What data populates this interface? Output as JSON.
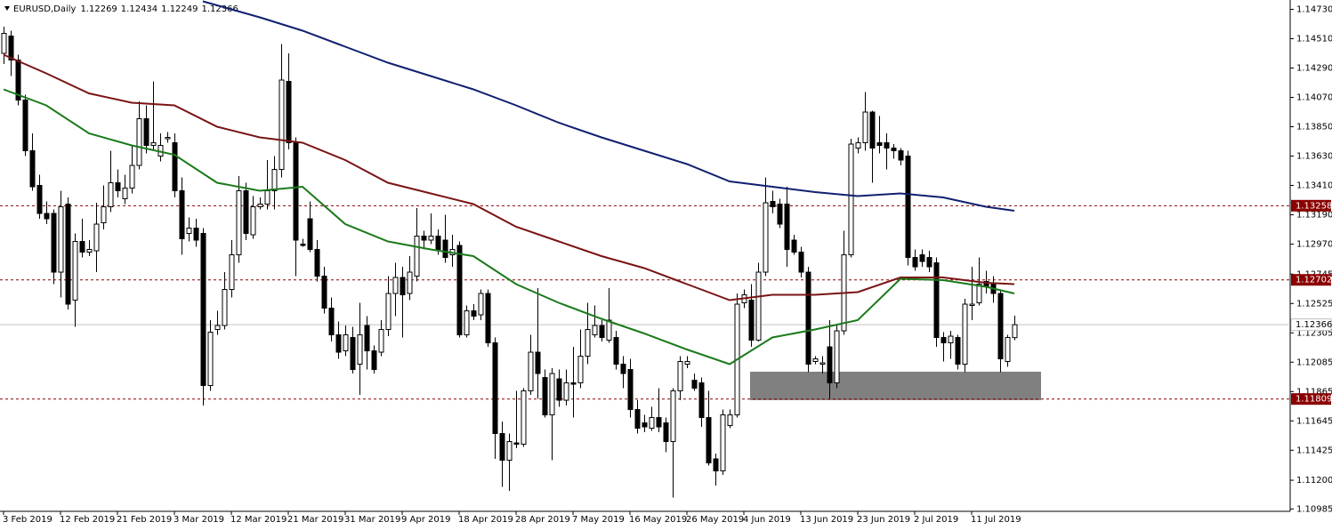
{
  "chart_data": {
    "type": "candlestick",
    "title": "EURUSD,Daily",
    "categories": [
      "3 Feb 2019",
      null,
      null,
      null,
      null,
      null,
      null,
      null,
      "12 Feb 2019",
      null,
      null,
      null,
      null,
      null,
      null,
      null,
      "21 Feb 2019",
      null,
      null,
      null,
      null,
      null,
      null,
      null,
      "3 Mar 2019",
      null,
      null,
      null,
      null,
      null,
      null,
      null,
      "12 Mar 2019",
      null,
      null,
      null,
      null,
      null,
      null,
      null,
      "21 Mar 2019",
      null,
      null,
      null,
      null,
      null,
      null,
      null,
      "31 Mar 2019",
      null,
      null,
      null,
      null,
      null,
      null,
      null,
      "9 Apr 2019",
      null,
      null,
      null,
      null,
      null,
      null,
      null,
      "18 Apr 2019",
      null,
      null,
      null,
      null,
      null,
      null,
      null,
      "28 Apr 2019",
      null,
      null,
      null,
      null,
      null,
      null,
      null,
      "7 May 2019",
      null,
      null,
      null,
      null,
      null,
      null,
      null,
      "16 May 2019",
      null,
      null,
      null,
      null,
      null,
      null,
      null,
      "26 May 2019",
      null,
      null,
      null,
      null,
      null,
      null,
      null,
      "4 Jun 2019",
      null,
      null,
      null,
      null,
      null,
      null,
      null,
      "13 Jun 2019",
      null,
      null,
      null,
      null,
      null,
      null,
      null,
      "23 Jun 2019",
      null,
      null,
      null,
      null,
      null,
      null,
      null,
      "2 Jul 2019",
      null,
      null,
      null,
      null,
      null,
      null,
      null,
      "11 Jul 2019",
      null,
      null,
      null,
      null,
      null,
      null
    ],
    "open": [
      1.144,
      1.1453,
      1.1435,
      1.1405,
      1.1367,
      1.1341,
      1.132,
      1.132,
      1.1276,
      1.1327,
      1.1255,
      1.1299,
      1.1291,
      1.1292,
      1.1313,
      1.1325,
      1.1343,
      1.1331,
      1.1339,
      1.1356,
      1.1391,
      1.1371,
      1.1363,
      1.1376,
      1.1373,
      1.1337,
      1.1305,
      1.1309,
      1.1305,
      1.1191,
      1.1233,
      1.1236,
      1.1263,
      1.1289,
      1.1337,
      1.1304,
      1.1325,
      1.1327,
      1.1337,
      1.1353,
      1.1419,
      1.1373,
      1.1297,
      1.1316,
      1.1293,
      1.1273,
      1.1249,
      1.1229,
      1.1217,
      1.1227,
      1.1207,
      1.1236,
      1.1217,
      1.1216,
      1.1233,
      1.126,
      1.1272,
      1.126,
      1.1273,
      1.1303,
      1.13,
      1.1303,
      1.13,
      1.1289,
      1.1296,
      1.1229,
      1.1247,
      1.1244,
      1.126,
      1.1223,
      1.1155,
      1.1135,
      1.1148,
      1.1147,
      1.1187,
      1.1216,
      1.1197,
      1.1169,
      1.1196,
      1.118,
      1.1193,
      1.1193,
      1.1213,
      1.1229,
      1.1236,
      1.1225,
      1.1227,
      1.1207,
      1.1203,
      1.1173,
      1.1163,
      1.1159,
      1.1167,
      1.1163,
      1.1149,
      1.1187,
      1.1207,
      1.1195,
      1.1193,
      1.1167,
      1.1136,
      1.1127,
      1.1161,
      1.1169,
      1.1253,
      1.1255,
      1.1225,
      1.1276,
      1.1329,
      1.1327,
      1.1327,
      1.13,
      1.1291,
      1.1276,
      1.1209,
      1.1207,
      1.122,
      1.1193,
      1.1232,
      1.1289,
      1.1369,
      1.1373,
      1.1396,
      1.1373,
      1.1373,
      1.1369,
      1.1367,
      1.1363,
      1.1287,
      1.1289,
      1.1287,
      1.1283,
      1.1227,
      1.1223,
      1.1227,
      1.1207,
      1.1251,
      1.1253,
      1.1269,
      1.1267,
      1.126,
      1.1209,
      1.12269
    ],
    "high": [
      1.146,
      1.1457,
      1.1439,
      1.1409,
      1.138,
      1.1349,
      1.1329,
      1.1323,
      1.1337,
      1.1332,
      1.1305,
      1.1316,
      1.13,
      1.1328,
      1.1341,
      1.1367,
      1.1353,
      1.1349,
      1.1371,
      1.1404,
      1.1401,
      1.1419,
      1.138,
      1.1381,
      1.138,
      1.1347,
      1.1317,
      1.1316,
      1.1309,
      1.124,
      1.1247,
      1.1276,
      1.13,
      1.1348,
      1.1343,
      1.1333,
      1.1332,
      1.136,
      1.1363,
      1.1447,
      1.144,
      1.1377,
      1.1301,
      1.1329,
      1.13,
      1.128,
      1.1257,
      1.1239,
      1.1236,
      1.1235,
      1.1253,
      1.1243,
      1.1221,
      1.124,
      1.1273,
      1.1283,
      1.128,
      1.1288,
      1.1324,
      1.1307,
      1.132,
      1.1308,
      1.1319,
      1.1304,
      1.1299,
      1.1251,
      1.1252,
      1.1263,
      1.1263,
      1.1227,
      1.1164,
      1.1155,
      1.1187,
      1.1189,
      1.1229,
      1.1264,
      1.1203,
      1.1204,
      1.1203,
      1.1203,
      1.122,
      1.1233,
      1.1253,
      1.1251,
      1.124,
      1.1264,
      1.1232,
      1.1213,
      1.1211,
      1.118,
      1.1169,
      1.1175,
      1.1189,
      1.1167,
      1.1189,
      1.1213,
      1.1213,
      1.12,
      1.1197,
      1.1187,
      1.114,
      1.1173,
      1.1173,
      1.126,
      1.1263,
      1.1267,
      1.1283,
      1.1347,
      1.1337,
      1.1331,
      1.134,
      1.1304,
      1.1295,
      1.128,
      1.1213,
      1.1213,
      1.124,
      1.1236,
      1.1307,
      1.1376,
      1.1377,
      1.1411,
      1.1397,
      1.1393,
      1.138,
      1.1372,
      1.1369,
      1.1367,
      1.1293,
      1.1293,
      1.1292,
      1.1287,
      1.1231,
      1.1232,
      1.1229,
      1.1256,
      1.128,
      1.1287,
      1.1277,
      1.1273,
      1.1263,
      1.1229,
      1.12434
    ],
    "low": [
      1.1432,
      1.1423,
      1.1401,
      1.1363,
      1.1337,
      1.1316,
      1.1312,
      1.1267,
      1.1257,
      1.1248,
      1.1235,
      1.1287,
      1.1288,
      1.1276,
      1.1308,
      1.1321,
      1.1332,
      1.1327,
      1.1335,
      1.1353,
      1.1365,
      1.1367,
      1.1359,
      1.1373,
      1.1332,
      1.1289,
      1.1299,
      1.1295,
      1.1176,
      1.1187,
      1.1229,
      1.1233,
      1.1257,
      1.1283,
      1.13,
      1.1301,
      1.1323,
      1.1323,
      1.1323,
      1.1347,
      1.1368,
      1.1273,
      1.1295,
      1.1291,
      1.1269,
      1.1245,
      1.1224,
      1.1211,
      1.1213,
      1.12,
      1.1184,
      1.1203,
      1.12,
      1.1213,
      1.1228,
      1.1243,
      1.1227,
      1.1255,
      1.1269,
      1.1293,
      1.1297,
      1.1289,
      1.1283,
      1.128,
      1.1227,
      1.1227,
      1.124,
      1.124,
      1.122,
      1.1136,
      1.1115,
      1.1112,
      1.1144,
      1.1145,
      1.1184,
      1.1181,
      1.1167,
      1.1135,
      1.1175,
      1.1176,
      1.1167,
      1.1189,
      1.1207,
      1.1227,
      1.1224,
      1.1223,
      1.1203,
      1.1189,
      1.1167,
      1.1155,
      1.1156,
      1.1157,
      1.1156,
      1.1141,
      1.1107,
      1.118,
      1.1204,
      1.1187,
      1.116,
      1.1131,
      1.1116,
      1.1124,
      1.1159,
      1.1167,
      1.1249,
      1.122,
      1.1224,
      1.1273,
      1.132,
      1.1309,
      1.128,
      1.1289,
      1.1272,
      1.1201,
      1.1207,
      1.12,
      1.1181,
      1.1189,
      1.1229,
      1.1287,
      1.1365,
      1.1367,
      1.1343,
      1.1365,
      1.1353,
      1.1361,
      1.1356,
      1.1281,
      1.1277,
      1.128,
      1.1276,
      1.122,
      1.1209,
      1.1211,
      1.1203,
      1.1201,
      1.124,
      1.1251,
      1.126,
      1.1253,
      1.1201,
      1.1205,
      1.12249
    ],
    "close": [
      1.1455,
      1.1435,
      1.1405,
      1.1367,
      1.134,
      1.132,
      1.1316,
      1.1276,
      1.1325,
      1.1252,
      1.1299,
      1.1291,
      1.1293,
      1.1312,
      1.1325,
      1.1343,
      1.1337,
      1.1339,
      1.1356,
      1.1391,
      1.1371,
      1.1373,
      1.1371,
      1.1377,
      1.1337,
      1.1301,
      1.1309,
      1.13,
      1.1191,
      1.1231,
      1.1236,
      1.1263,
      1.1289,
      1.1337,
      1.1305,
      1.1325,
      1.1327,
      1.1337,
      1.1353,
      1.142,
      1.1373,
      1.13,
      1.1296,
      1.1293,
      1.1273,
      1.1249,
      1.1229,
      1.1216,
      1.1229,
      1.1203,
      1.1229,
      1.1217,
      1.1203,
      1.1233,
      1.126,
      1.1272,
      1.1259,
      1.1276,
      1.1303,
      1.13,
      1.1303,
      1.1293,
      1.1287,
      1.1293,
      1.1229,
      1.1247,
      1.1243,
      1.126,
      1.1223,
      1.1155,
      1.1135,
      1.1149,
      1.1147,
      1.1187,
      1.1216,
      1.12,
      1.1169,
      1.12,
      1.118,
      1.1193,
      1.1192,
      1.1213,
      1.1233,
      1.1236,
      1.1227,
      1.124,
      1.1207,
      1.12,
      1.1173,
      1.1159,
      1.116,
      1.1167,
      1.116,
      1.1149,
      1.1187,
      1.1209,
      1.1209,
      1.1189,
      1.1167,
      1.1133,
      1.1127,
      1.1169,
      1.1169,
      1.1252,
      1.1259,
      1.1225,
      1.1276,
      1.1328,
      1.1325,
      1.1312,
      1.1293,
      1.1291,
      1.1276,
      1.1207,
      1.1211,
      1.1208,
      1.1193,
      1.1232,
      1.1289,
      1.1372,
      1.1373,
      1.1396,
      1.1369,
      1.1371,
      1.1369,
      1.1367,
      1.136,
      1.1287,
      1.128,
      1.1284,
      1.128,
      1.1227,
      1.1223,
      1.1228,
      1.1207,
      1.1252,
      1.1252,
      1.1267,
      1.1265,
      1.126,
      1.1211,
      1.1227,
      1.12366
    ],
    "up_color": "#ffffff",
    "down_color": "#000000",
    "lines": [
      {
        "color": "#102070",
        "x": [
          28,
          36,
          42,
          48,
          54,
          60,
          66,
          72,
          78,
          84,
          90,
          96,
          102,
          108,
          114,
          120,
          126,
          132,
          138,
          142
        ],
        "values": [
          1.1479,
          1.1467,
          1.1457,
          1.1445,
          1.1433,
          1.1423,
          1.1413,
          1.1401,
          1.1388,
          1.1377,
          1.1367,
          1.1357,
          1.1344,
          1.134,
          1.1336,
          1.1333,
          1.1335,
          1.1332,
          1.1325,
          1.1322
        ]
      },
      {
        "color": "#7a1414",
        "x": [
          0,
          6,
          12,
          18,
          24,
          30,
          36,
          42,
          48,
          54,
          60,
          66,
          72,
          78,
          84,
          90,
          96,
          102,
          108,
          114,
          120,
          126,
          132,
          138,
          142
        ],
        "values": [
          1.1439,
          1.1425,
          1.141,
          1.1403,
          1.1401,
          1.1385,
          1.1377,
          1.1373,
          1.136,
          1.1343,
          1.1335,
          1.1327,
          1.131,
          1.1299,
          1.1288,
          1.1279,
          1.1267,
          1.1255,
          1.1259,
          1.1259,
          1.1261,
          1.1272,
          1.1272,
          1.1268,
          1.1267
        ]
      },
      {
        "color": "#1a7a1a",
        "x": [
          0,
          6,
          12,
          18,
          24,
          30,
          36,
          42,
          48,
          54,
          60,
          66,
          72,
          78,
          84,
          90,
          96,
          102,
          108,
          114,
          120,
          126,
          132,
          138,
          142
        ],
        "values": [
          1.1413,
          1.1401,
          1.138,
          1.1371,
          1.1364,
          1.1343,
          1.1337,
          1.134,
          1.1312,
          1.1299,
          1.1293,
          1.1288,
          1.1267,
          1.1253,
          1.1241,
          1.123,
          1.1218,
          1.1207,
          1.1227,
          1.1233,
          1.124,
          1.1271,
          1.127,
          1.1265,
          1.126
        ]
      }
    ],
    "hlines": [
      {
        "value": 1.13258,
        "color": "#8b0000"
      },
      {
        "value": 1.12702,
        "color": "#8b0000"
      },
      {
        "value": 1.11809,
        "color": "#8b0000"
      }
    ],
    "last_price_color": "#c0c0c0",
    "ylim": [
      1.10967,
      1.148
    ],
    "yticks": [
      {
        "value": 1.1473,
        "label": "1.14730"
      },
      {
        "value": 1.1451,
        "label": "1.14510"
      },
      {
        "value": 1.1429,
        "label": "1.14290"
      },
      {
        "value": 1.1407,
        "label": "1.14070"
      },
      {
        "value": 1.1385,
        "label": "1.13850"
      },
      {
        "value": 1.1363,
        "label": "1.13630"
      },
      {
        "value": 1.1341,
        "label": "1.13410"
      },
      {
        "value": 1.1319,
        "label": "1.13190"
      },
      {
        "value": 1.1297,
        "label": "1.12970"
      },
      {
        "value": 1.12745,
        "label": "1.12745"
      },
      {
        "value": 1.12525,
        "label": "1.12525"
      },
      {
        "value": 1.12305,
        "label": "1.12305"
      },
      {
        "value": 1.12085,
        "label": "1.12085"
      },
      {
        "value": 1.11865,
        "label": "1.11865"
      },
      {
        "value": 1.11645,
        "label": "1.11645"
      },
      {
        "value": 1.11425,
        "label": "1.11425"
      },
      {
        "value": 1.112,
        "label": "1.11200"
      },
      {
        "value": 1.10985,
        "label": "1.10985"
      }
    ]
  }
}
